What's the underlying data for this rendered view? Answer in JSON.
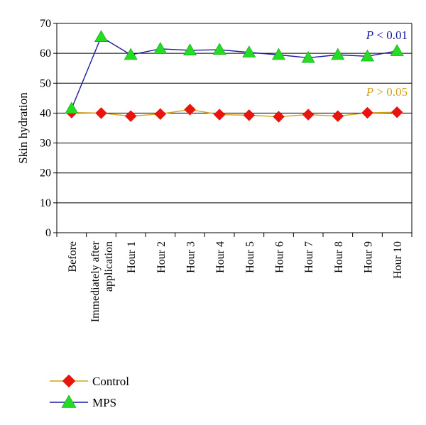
{
  "chart_data": {
    "type": "line",
    "ylabel": "Skin hydration",
    "xlabel": "",
    "ylim": [
      0,
      70
    ],
    "yticks": [
      0,
      10,
      20,
      30,
      40,
      50,
      60,
      70
    ],
    "grid": "horizontal",
    "legend_position": "bottom-left",
    "categories": [
      [
        "Before"
      ],
      [
        "Immediately after",
        "application"
      ],
      [
        "Hour 1"
      ],
      [
        "Hour 2"
      ],
      [
        "Hour 3"
      ],
      [
        "Hour 4"
      ],
      [
        "Hour 5"
      ],
      [
        "Hour 6"
      ],
      [
        "Hour 7"
      ],
      [
        "Hour 8"
      ],
      [
        "Hour 9"
      ],
      [
        "Hour 10"
      ]
    ],
    "series": [
      {
        "name": "Control",
        "line_color": "#d4a017",
        "marker_color": "#e8150f",
        "marker": "diamond",
        "values": [
          40.2,
          40.0,
          39.0,
          39.7,
          41.2,
          39.5,
          39.3,
          38.8,
          39.5,
          39.0,
          40.1,
          40.3
        ]
      },
      {
        "name": "MPS",
        "line_color": "#1a1aa0",
        "marker_color": "#22dd22",
        "marker": "triangle",
        "values": [
          41.5,
          65.5,
          59.5,
          61.5,
          61.0,
          61.2,
          60.3,
          59.5,
          58.5,
          59.5,
          59.0,
          60.8
        ]
      }
    ],
    "annotations": [
      {
        "prefix": "P",
        "text": " < 0.01",
        "color": "#1a1aa0",
        "series": "MPS"
      },
      {
        "prefix": "P",
        "text": " > 0.05",
        "color": "#d4a017",
        "series": "Control"
      }
    ]
  }
}
